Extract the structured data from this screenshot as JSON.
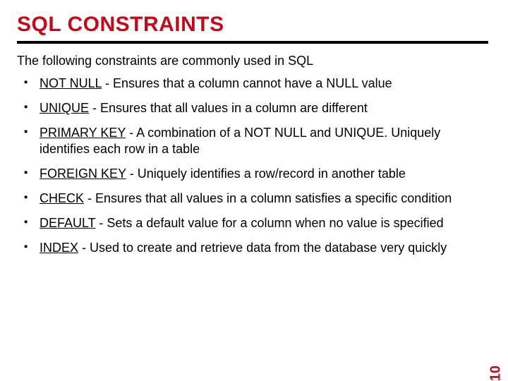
{
  "colors": {
    "accent": "#c30a1a",
    "rule": "#000000",
    "text": "#000000",
    "background": "#ffffff"
  },
  "typography": {
    "title_fontsize": 30,
    "title_weight": 900,
    "body_fontsize": 18,
    "line_height": 1.28
  },
  "title": "SQL CONSTRAINTS",
  "intro": "The following constraints are commonly used in SQL",
  "items": [
    {
      "keyword": "NOT NULL",
      "desc": " - Ensures that a column cannot have a NULL value"
    },
    {
      "keyword": "UNIQUE",
      "desc": " - Ensures that all values in a column are different"
    },
    {
      "keyword": "PRIMARY KEY",
      "desc": " - A combination of a NOT NULL and UNIQUE. Uniquely identifies each row in a table"
    },
    {
      "keyword": "FOREIGN KEY",
      "desc": " - Uniquely identifies a row/record in another table"
    },
    {
      "keyword": "CHECK",
      "desc": " - Ensures that all values in a column satisfies a specific condition"
    },
    {
      "keyword": "DEFAULT",
      "desc": " - Sets a default value for a column when no value is specified"
    },
    {
      "keyword": "INDEX",
      "desc": " - Used to create and retrieve data from the database very quickly"
    }
  ],
  "page_number": "10"
}
